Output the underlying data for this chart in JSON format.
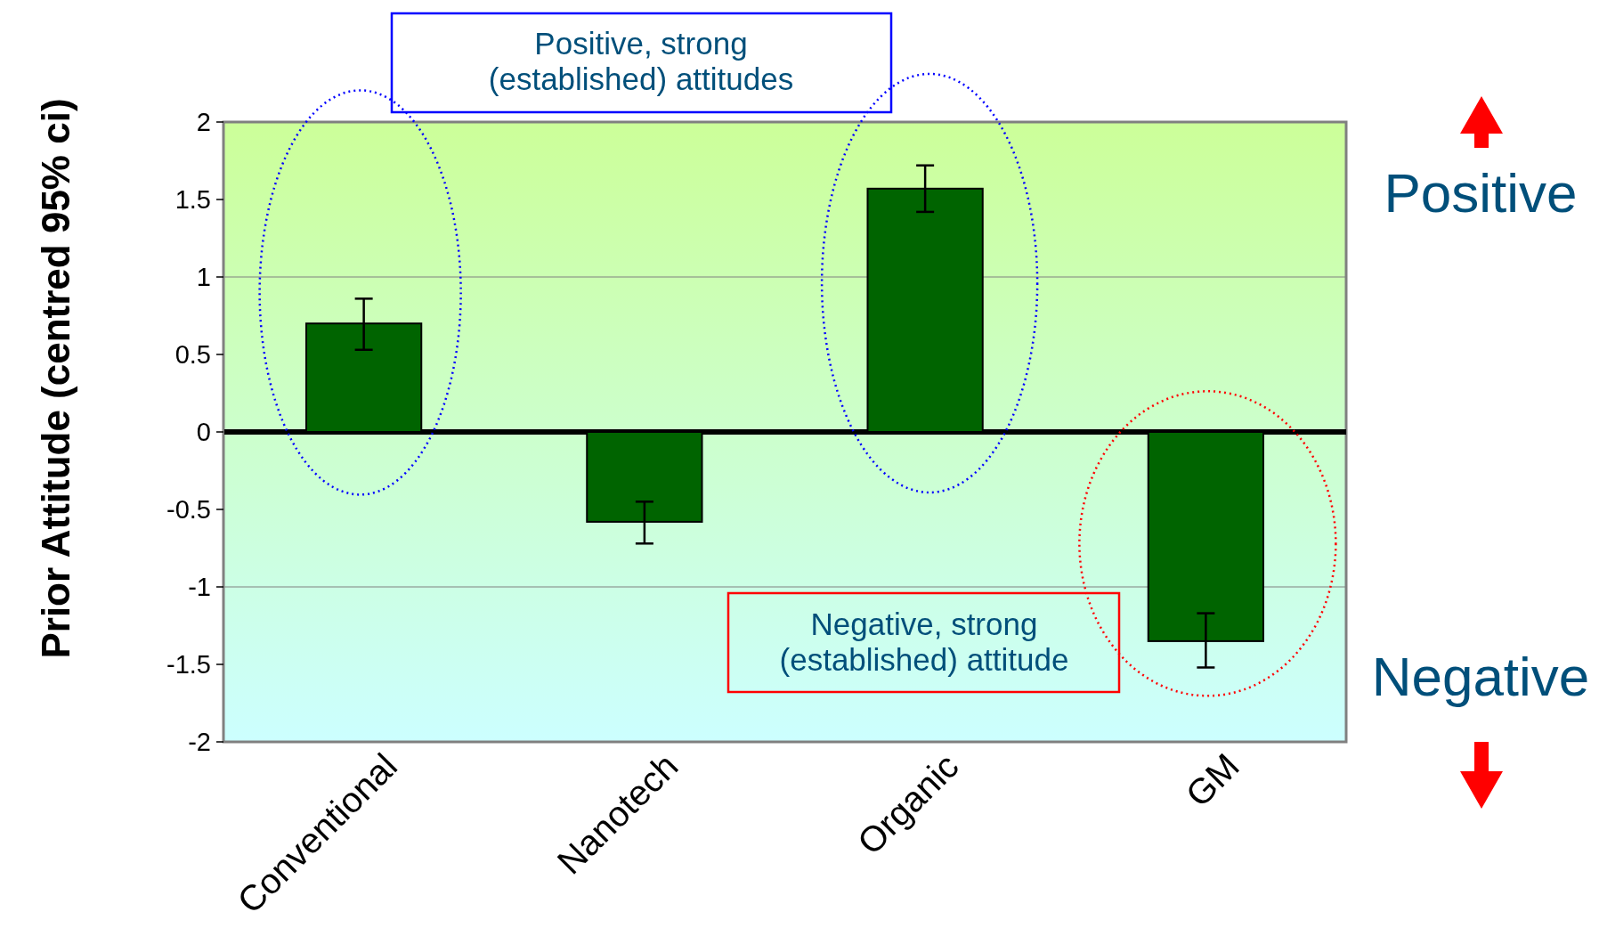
{
  "chart_data": {
    "type": "bar",
    "ylabel": "Prior Attitude (centred  95% ci)",
    "categories": [
      "Conventional",
      "Nanotech",
      "Organic",
      "GM"
    ],
    "values": [
      0.7,
      -0.58,
      1.57,
      -1.35
    ],
    "errors": [
      [
        0.53,
        0.86
      ],
      [
        -0.72,
        -0.45
      ],
      [
        1.42,
        1.72
      ],
      [
        -1.52,
        -1.17
      ]
    ],
    "color": "#006400",
    "ylim": [
      -2,
      2
    ],
    "yticks": [
      -2,
      -1.5,
      -1,
      -0.5,
      0,
      0.5,
      1,
      1.5,
      2
    ],
    "ref_lines": [
      {
        "axis": "y",
        "value": 1,
        "color": "#808080"
      },
      {
        "axis": "y",
        "value": -1,
        "color": "#808080"
      },
      {
        "axis": "y",
        "value": 0,
        "color": "#000000"
      }
    ],
    "annotations": [
      "Positive, strong\n(established) attitudes",
      "Negative, strong\n(established) attitude",
      "Positive",
      "Negative"
    ]
  }
}
